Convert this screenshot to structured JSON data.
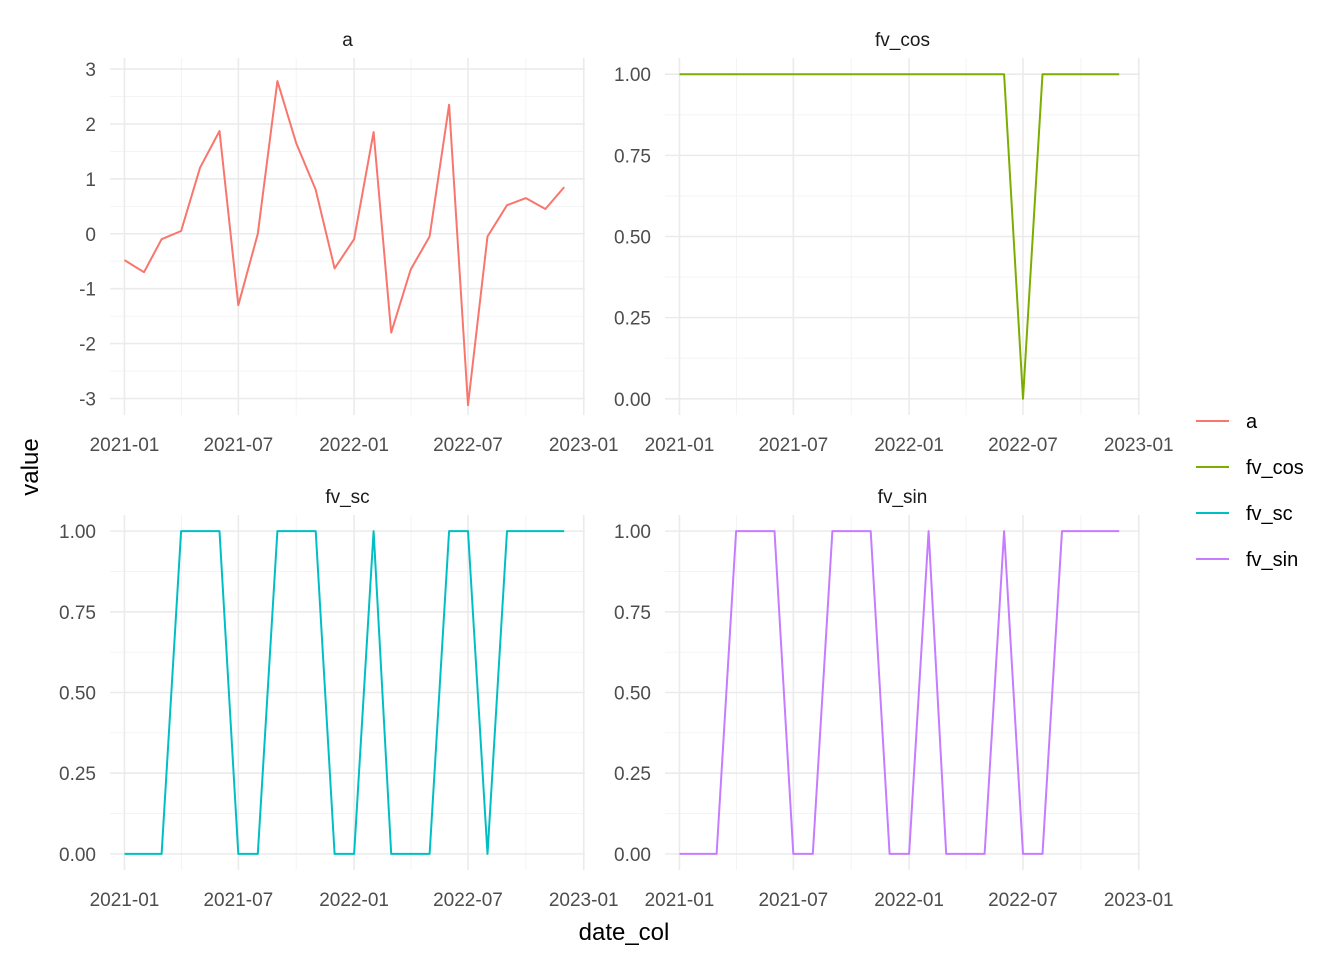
{
  "chart_data": {
    "type": "line",
    "xlabel": "date_col",
    "ylabel": "value",
    "x_ticks": [
      "2021-01",
      "2021-07",
      "2022-01",
      "2022-07",
      "2023-01"
    ],
    "xlim": [
      "2020-12-09",
      "2023-01-03"
    ],
    "dates": [
      "2021-01",
      "2021-02",
      "2021-03",
      "2021-04",
      "2021-05",
      "2021-06",
      "2021-07",
      "2021-08",
      "2021-09",
      "2021-10",
      "2021-11",
      "2021-12",
      "2022-01",
      "2022-02",
      "2022-03",
      "2022-04",
      "2022-05",
      "2022-06",
      "2022-07",
      "2022-08",
      "2022-09",
      "2022-10",
      "2022-11",
      "2022-12"
    ],
    "grid": true,
    "legend_position": "right",
    "legend": [
      {
        "label": "a",
        "color": "#F8766D"
      },
      {
        "label": "fv_cos",
        "color": "#7CAE00"
      },
      {
        "label": "fv_sc",
        "color": "#00BFC4"
      },
      {
        "label": "fv_sin",
        "color": "#C77CFF"
      }
    ],
    "panels": [
      {
        "title": "a",
        "color": "#F8766D",
        "y_ticks": [
          "3",
          "2",
          "1",
          "0",
          "-1",
          "-2",
          "-3"
        ],
        "y_tick_values": [
          3,
          2,
          1,
          0,
          -1,
          -2,
          -3
        ],
        "ylim": [
          -3.3,
          3.2
        ],
        "values": [
          -0.48,
          -0.7,
          -0.1,
          0.05,
          1.2,
          1.87,
          -1.3,
          0.0,
          2.78,
          1.65,
          0.8,
          -0.63,
          -0.1,
          1.85,
          -1.8,
          -0.65,
          -0.05,
          2.35,
          -3.12,
          -0.05,
          0.52,
          0.65,
          0.45,
          0.85
        ]
      },
      {
        "title": "fv_cos",
        "color": "#7CAE00",
        "y_ticks": [
          "1.00",
          "0.75",
          "0.50",
          "0.25",
          "0.00"
        ],
        "y_tick_values": [
          1,
          0.75,
          0.5,
          0.25,
          0
        ],
        "ylim": [
          -0.05,
          1.05
        ],
        "values": [
          1,
          1,
          1,
          1,
          1,
          1,
          1,
          1,
          1,
          1,
          1,
          1,
          1,
          1,
          1,
          1,
          1,
          1,
          0,
          1,
          1,
          1,
          1,
          1
        ]
      },
      {
        "title": "fv_sc",
        "color": "#00BFC4",
        "y_ticks": [
          "1.00",
          "0.75",
          "0.50",
          "0.25",
          "0.00"
        ],
        "y_tick_values": [
          1,
          0.75,
          0.5,
          0.25,
          0
        ],
        "ylim": [
          -0.05,
          1.05
        ],
        "values": [
          0,
          0,
          0,
          1,
          1,
          1,
          0,
          0,
          1,
          1,
          1,
          0,
          0,
          1,
          0,
          0,
          0,
          1,
          1,
          0,
          1,
          1,
          1,
          1
        ]
      },
      {
        "title": "fv_sin",
        "color": "#C77CFF",
        "y_ticks": [
          "1.00",
          "0.75",
          "0.50",
          "0.25",
          "0.00"
        ],
        "y_tick_values": [
          1,
          0.75,
          0.5,
          0.25,
          0
        ],
        "ylim": [
          -0.05,
          1.05
        ],
        "values": [
          0,
          0,
          0,
          1,
          1,
          1,
          0,
          0,
          1,
          1,
          1,
          0,
          0,
          1,
          0,
          0,
          0,
          1,
          0,
          0,
          1,
          1,
          1,
          1
        ]
      }
    ]
  }
}
